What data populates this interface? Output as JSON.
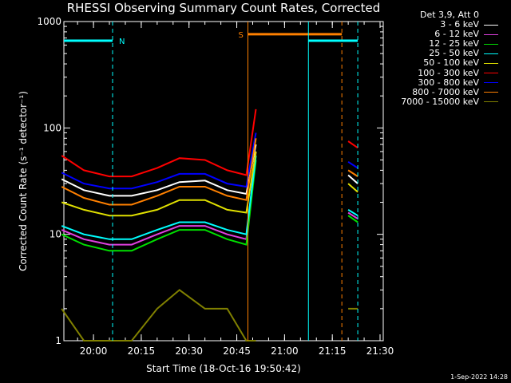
{
  "chart_data": {
    "type": "line",
    "title": "RHESSI Observing Summary Count Rates, Corrected",
    "xlabel": "Start Time (18-Oct-16 19:50:42)",
    "ylabel": "Corrected Count Rate (s⁻¹ detector⁻¹)",
    "y_scale": "log",
    "ylim": [
      1,
      1000
    ],
    "xlim": [
      "19:50:42",
      "21:31:00"
    ],
    "x_ticks": [
      "20:00",
      "20:15",
      "20:30",
      "20:45",
      "21:00",
      "21:15",
      "21:30"
    ],
    "y_ticks": [
      "1",
      "10",
      "100",
      "1000"
    ],
    "legend_title": "Det 3,9, Att 0",
    "legend_position": "right",
    "x_times": [
      "19:50",
      "19:57",
      "20:05",
      "20:12",
      "20:20",
      "20:27",
      "20:35",
      "20:42",
      "20:48",
      "20:51",
      "21:20",
      "21:23"
    ],
    "series": [
      {
        "name": "3 - 6 keV",
        "color": "#ffffff",
        "values": [
          33,
          26,
          23,
          23,
          26,
          31,
          32,
          26,
          24,
          70,
          36,
          30
        ]
      },
      {
        "name": "6 - 12 keV",
        "color": "#e040e0",
        "values": [
          11,
          9,
          8,
          8,
          10,
          12,
          12,
          10,
          9,
          60,
          16,
          14
        ]
      },
      {
        "name": "12 - 25 keV",
        "color": "#00e000",
        "values": [
          10,
          8,
          7,
          7,
          9,
          11,
          11,
          9,
          8,
          50,
          15,
          13
        ]
      },
      {
        "name": "25 - 50 keV",
        "color": "#00ffff",
        "values": [
          12,
          10,
          9,
          9,
          11,
          13,
          13,
          11,
          10,
          55,
          17,
          15
        ]
      },
      {
        "name": "50 - 100 keV",
        "color": "#e0e000",
        "values": [
          20,
          17,
          15,
          15,
          17,
          21,
          21,
          17,
          16,
          60,
          30,
          25
        ]
      },
      {
        "name": "100 - 300 keV",
        "color": "#ff0000",
        "values": [
          55,
          40,
          35,
          35,
          42,
          52,
          50,
          40,
          36,
          150,
          75,
          65
        ]
      },
      {
        "name": "300 - 800 keV",
        "color": "#0000ff",
        "values": [
          38,
          30,
          27,
          27,
          31,
          37,
          37,
          30,
          28,
          90,
          48,
          42
        ]
      },
      {
        "name": "800 - 7000 keV",
        "color": "#ff8000",
        "values": [
          28,
          22,
          19,
          19,
          23,
          28,
          28,
          23,
          21,
          80,
          40,
          35
        ]
      },
      {
        "name": "7000 - 15000 keV",
        "color": "#808000",
        "values": [
          2,
          1,
          1,
          1,
          2,
          3,
          2,
          2,
          1,
          1,
          2,
          2
        ]
      }
    ],
    "annotations": [
      {
        "label": "N",
        "color": "#00ffff",
        "from": "19:50:42",
        "to": "20:06:00",
        "y": 660
      },
      {
        "label": "S",
        "color": "#ff8000",
        "from": "20:48:30",
        "to": "21:18:00",
        "y": 760
      }
    ]
  },
  "footer": {
    "stamp": "1-Sep-2022 14:28"
  }
}
